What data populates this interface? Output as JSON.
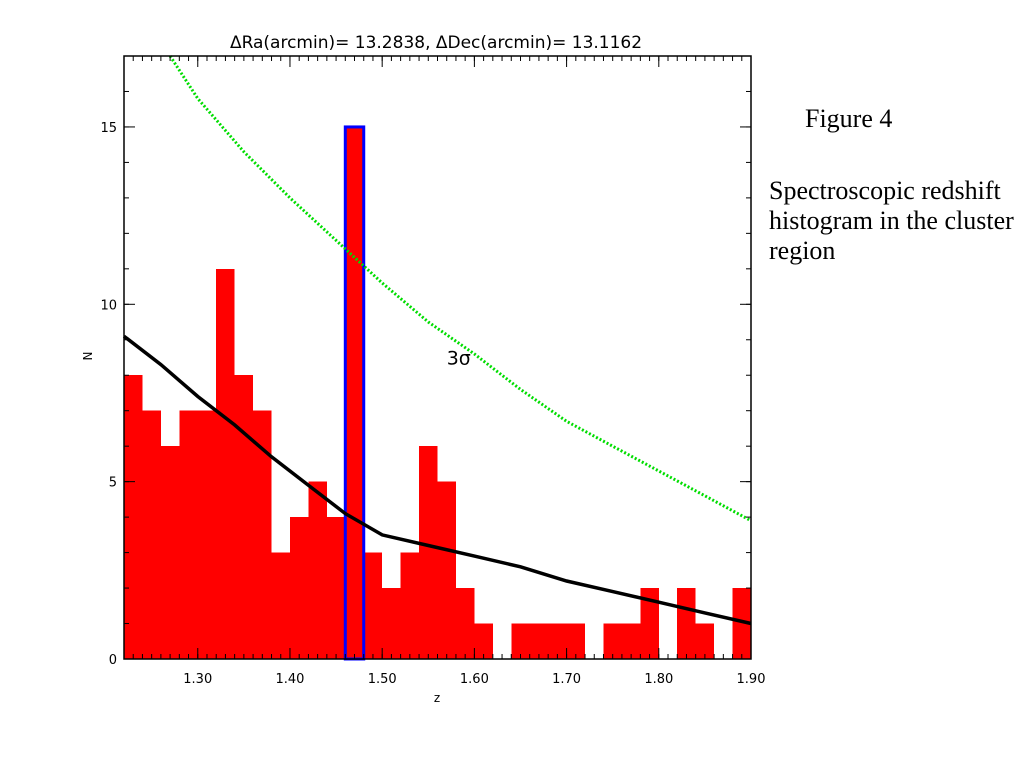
{
  "caption": {
    "figure_label": "Figure 4",
    "description": "Spectroscopic redshift histogram in the cluster region"
  },
  "chart_data": {
    "type": "bar",
    "title": "ΔRa(arcmin)= 13.2838, ΔDec(arcmin)= 13.1162",
    "xlabel": "z",
    "ylabel": "N",
    "xlim": [
      1.22,
      1.9
    ],
    "ylim": [
      0,
      17
    ],
    "x_ticks": [
      1.3,
      1.4,
      1.5,
      1.6,
      1.7,
      1.8,
      1.9
    ],
    "x_tick_labels": [
      "1.30",
      "1.40",
      "1.50",
      "1.60",
      "1.70",
      "1.80",
      "1.90"
    ],
    "y_ticks": [
      0,
      5,
      10,
      15
    ],
    "y_tick_labels": [
      "0",
      "5",
      "10",
      "15"
    ],
    "bin_width": 0.02,
    "bins_start": [
      1.22,
      1.24,
      1.26,
      1.28,
      1.3,
      1.32,
      1.34,
      1.36,
      1.38,
      1.4,
      1.42,
      1.44,
      1.46,
      1.48,
      1.5,
      1.52,
      1.54,
      1.56,
      1.58,
      1.6,
      1.62,
      1.64,
      1.66,
      1.68,
      1.7,
      1.72,
      1.74,
      1.76,
      1.78,
      1.8,
      1.82,
      1.84,
      1.86,
      1.88
    ],
    "counts": [
      8,
      7,
      6,
      7,
      7,
      11,
      8,
      7,
      3,
      4,
      5,
      4,
      15,
      3,
      2,
      3,
      6,
      5,
      2,
      1,
      0,
      1,
      1,
      1,
      1,
      0,
      1,
      1,
      2,
      0,
      2,
      1,
      0,
      2
    ],
    "highlight_bin": {
      "start": 1.46,
      "end": 1.48,
      "count": 15
    },
    "mean_curve": {
      "x": [
        1.22,
        1.26,
        1.3,
        1.34,
        1.38,
        1.42,
        1.46,
        1.5,
        1.55,
        1.6,
        1.65,
        1.7,
        1.75,
        1.8,
        1.85,
        1.9
      ],
      "y": [
        9.1,
        8.3,
        7.4,
        6.6,
        5.7,
        4.9,
        4.1,
        3.5,
        3.2,
        2.9,
        2.6,
        2.2,
        1.9,
        1.6,
        1.3,
        1.0
      ]
    },
    "sigma_curve": {
      "label": "3σ",
      "label_x": 1.57,
      "label_y": 8.3,
      "x": [
        1.27,
        1.3,
        1.35,
        1.4,
        1.45,
        1.5,
        1.55,
        1.6,
        1.65,
        1.7,
        1.75,
        1.8,
        1.85,
        1.9
      ],
      "y": [
        17,
        15.8,
        14.3,
        13.0,
        11.8,
        10.6,
        9.5,
        8.6,
        7.6,
        6.7,
        6.0,
        5.3,
        4.6,
        3.9
      ]
    },
    "colors": {
      "bars": "#ff0000",
      "highlight_outline": "#0000ff",
      "mean_curve": "#000000",
      "sigma_curve": "#00dd00"
    }
  }
}
